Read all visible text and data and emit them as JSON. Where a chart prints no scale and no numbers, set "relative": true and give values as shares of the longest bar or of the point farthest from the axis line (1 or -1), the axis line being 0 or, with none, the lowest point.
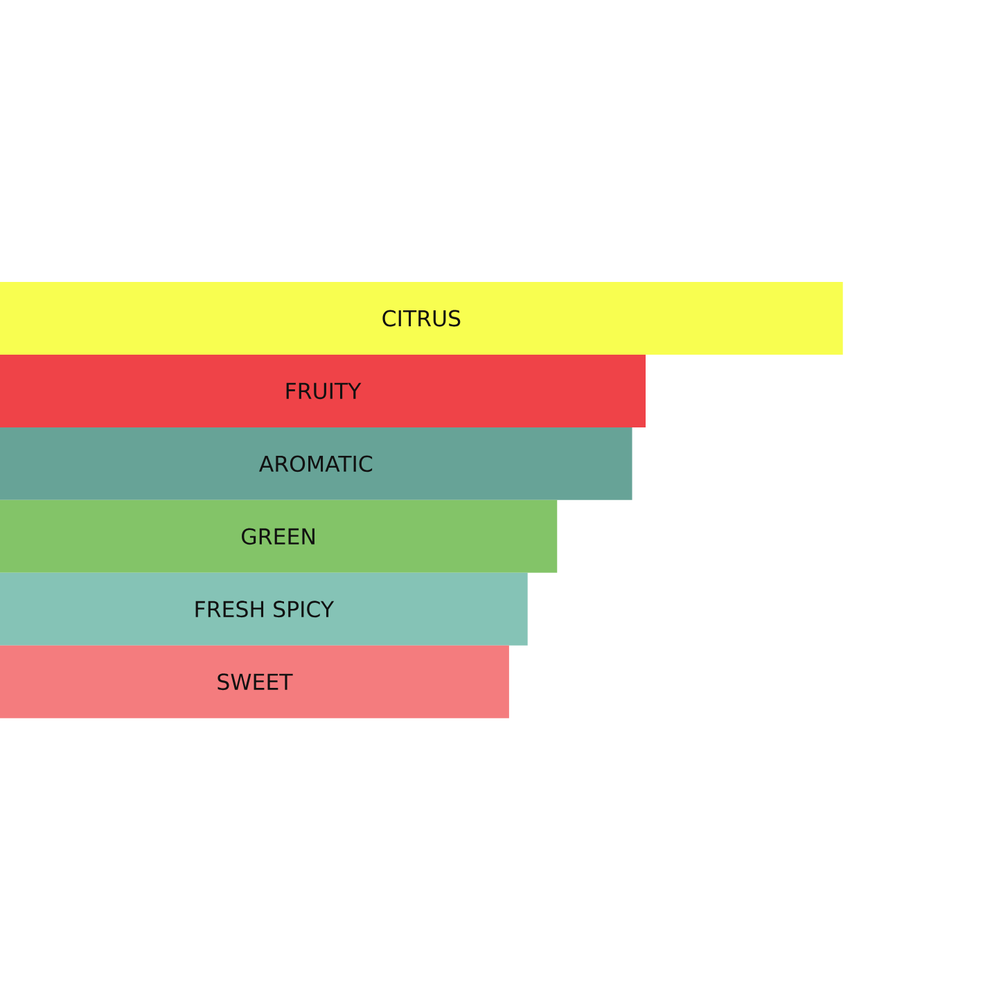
{
  "chart_data": {
    "type": "bar",
    "orientation": "horizontal",
    "relative": true,
    "categories": [
      "CITRUS",
      "FRUITY",
      "AROMATIC",
      "GREEN",
      "FRESH SPICY",
      "SWEET"
    ],
    "values": [
      1,
      0.766,
      0.75,
      0.661,
      0.626,
      0.604
    ],
    "colors": [
      "#f8fe50",
      "#ef4348",
      "#67a397",
      "#83c468",
      "#85c3b6",
      "#f47c7e"
    ]
  }
}
